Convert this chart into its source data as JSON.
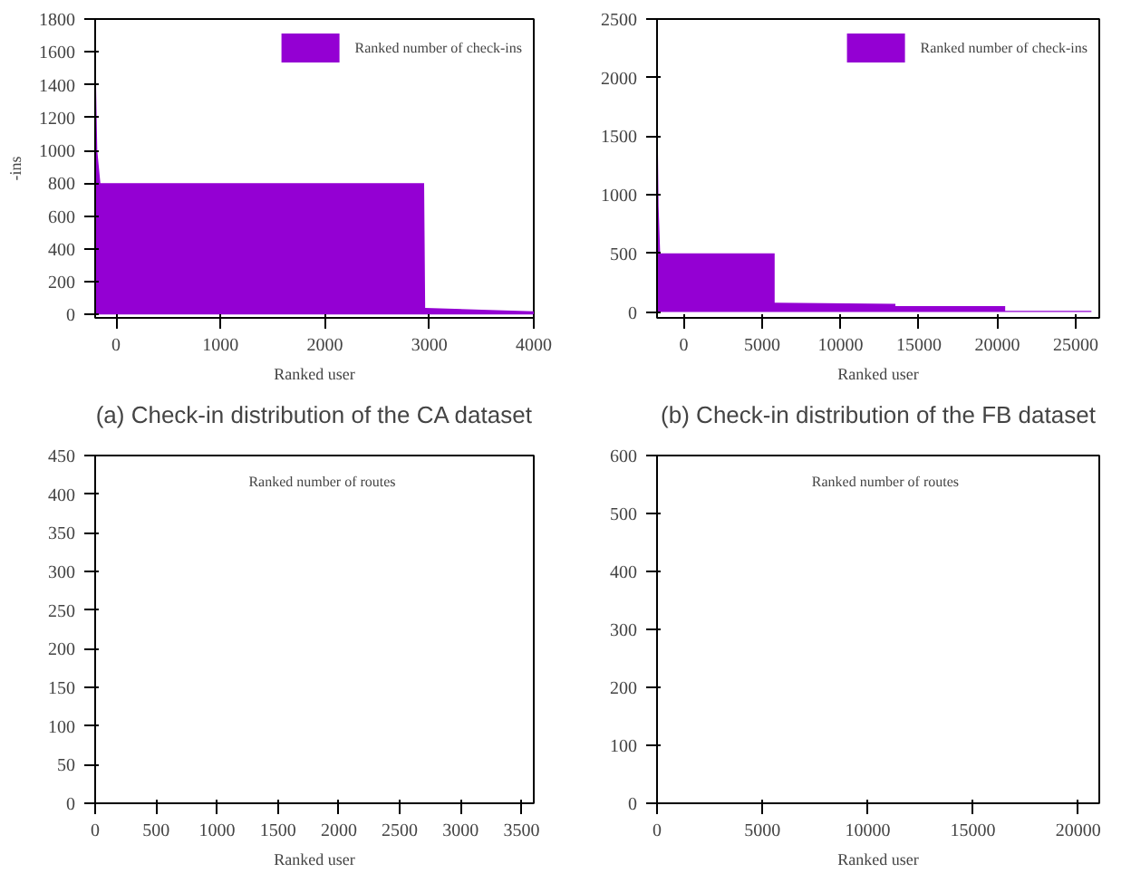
{
  "chart_data": [
    {
      "type": "area",
      "xlabel": "Ranked user",
      "ylabel": "-ins",
      "annotations": [
        "(a) Check-in distribution of the CA dataset"
      ],
      "legend": "top right",
      "grid": false,
      "xlim": [
        -200,
        4000
      ],
      "xticks": [
        0,
        1000,
        2000,
        3000,
        4000
      ],
      "ylim": [
        -20,
        1800
      ],
      "yticks": [
        0,
        200,
        400,
        600,
        800,
        1000,
        1200,
        1400,
        1600,
        1800
      ],
      "series": [
        {
          "name": "Ranked number of check-ins",
          "color": "#9400d3",
          "x": [
            -200,
            -180,
            -150,
            2950,
            2960,
            3500,
            4000
          ],
          "values": [
            1700,
            1000,
            800,
            800,
            40,
            30,
            20
          ]
        }
      ]
    },
    {
      "type": "area",
      "xlabel": "Ranked user",
      "annotations": [
        "(b) Check-in distribution of the FB dataset"
      ],
      "legend": "top right",
      "grid": false,
      "xlim": [
        -1700,
        26500
      ],
      "xticks": [
        0,
        5000,
        10000,
        15000,
        20000,
        25000
      ],
      "ylim": [
        -50,
        2500
      ],
      "yticks": [
        0,
        500,
        1000,
        1500,
        2000,
        2500
      ],
      "series": [
        {
          "name": "Ranked number of check-ins",
          "color": "#9400d3",
          "x": [
            -1700,
            -1600,
            -1500,
            5800,
            5800,
            13500,
            13500,
            20500,
            20500,
            26000
          ],
          "values": [
            2000,
            900,
            500,
            500,
            80,
            70,
            50,
            50,
            10,
            10
          ]
        }
      ]
    },
    {
      "type": "line",
      "xlabel": "Ranked user",
      "annotations": [
        "Ranked number of routes"
      ],
      "grid": false,
      "xlim": [
        0,
        3600
      ],
      "xticks": [
        0,
        500,
        1000,
        1500,
        2000,
        2500,
        3000,
        3500
      ],
      "ylim": [
        0,
        450
      ],
      "yticks": [
        0,
        50,
        100,
        150,
        200,
        250,
        300,
        350,
        400,
        450
      ]
    },
    {
      "type": "line",
      "xlabel": "Ranked user",
      "annotations": [
        "Ranked number of routes"
      ],
      "grid": false,
      "xlim": [
        0,
        21000
      ],
      "xticks": [
        0,
        5000,
        10000,
        15000,
        20000
      ],
      "ylim": [
        0,
        600
      ],
      "yticks": [
        0,
        100,
        200,
        300,
        400,
        500,
        600
      ]
    }
  ]
}
